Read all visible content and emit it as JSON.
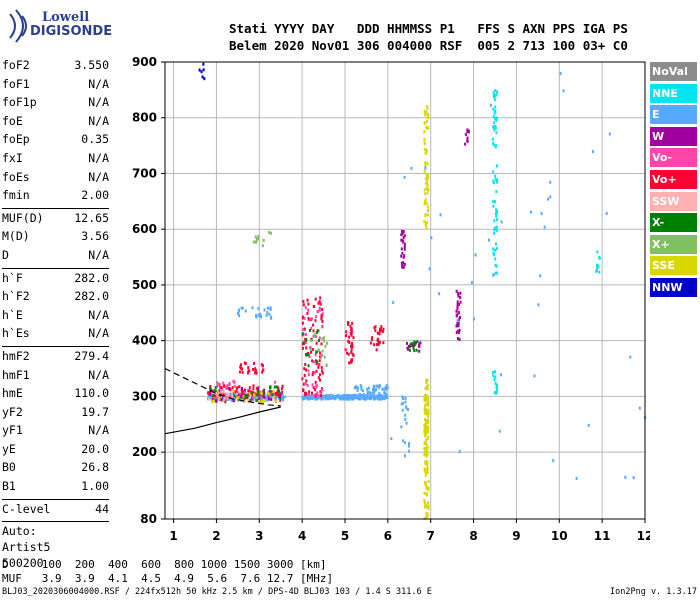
{
  "logo": {
    "line1": "Lowell",
    "line2": "DIGISONDE"
  },
  "header": {
    "line1": "Stati YYYY DAY   DDD HHMMSS P1   FFS S AXN PPS IGA PS",
    "line2": "Belem 2020 Nov01 306 004000 RSF  005 2 713 100 03+ C0"
  },
  "params_a": [
    {
      "label": "foF2",
      "value": "3.550"
    },
    {
      "label": "foF1",
      "value": "N/A"
    },
    {
      "label": "foF1p",
      "value": "N/A"
    },
    {
      "label": "foE",
      "value": "N/A"
    },
    {
      "label": "foEp",
      "value": "0.35"
    },
    {
      "label": "fxI",
      "value": "N/A"
    },
    {
      "label": "foEs",
      "value": "N/A"
    },
    {
      "label": "fmin",
      "value": "2.00"
    }
  ],
  "params_b": [
    {
      "label": "MUF(D)",
      "value": "12.65"
    },
    {
      "label": "M(D)",
      "value": "3.56"
    },
    {
      "label": "D",
      "value": "N/A"
    }
  ],
  "params_c": [
    {
      "label": "h`F",
      "value": "282.0"
    },
    {
      "label": "h`F2",
      "value": "282.0"
    },
    {
      "label": "h`E",
      "value": "N/A"
    },
    {
      "label": "h`Es",
      "value": "N/A"
    }
  ],
  "params_d": [
    {
      "label": "hmF2",
      "value": "279.4"
    },
    {
      "label": "hmF1",
      "value": "N/A"
    },
    {
      "label": "hmE",
      "value": "110.0"
    },
    {
      "label": "yF2",
      "value": "19.7"
    },
    {
      "label": "yF1",
      "value": "N/A"
    },
    {
      "label": "yE",
      "value": "20.0"
    },
    {
      "label": "B0",
      "value": "26.8"
    },
    {
      "label": "B1",
      "value": "1.00"
    }
  ],
  "params_e": [
    {
      "label": "C-level",
      "value": "44"
    }
  ],
  "auto": [
    "Auto:",
    "Artist5",
    "500200"
  ],
  "legend": [
    {
      "label": "NoVal",
      "color": "#8c8c8c"
    },
    {
      "label": "NNE",
      "color": "#00e5f0"
    },
    {
      "label": "E",
      "color": "#55aaff"
    },
    {
      "label": "W",
      "color": "#a000a0"
    },
    {
      "label": "Vo-",
      "color": "#ff44aa"
    },
    {
      "label": "Vo+",
      "color": "#ff0033"
    },
    {
      "label": "SSW",
      "color": "#ffb0b0"
    },
    {
      "label": "X-",
      "color": "#008000"
    },
    {
      "label": "X+",
      "color": "#80c060"
    },
    {
      "label": "SSE",
      "color": "#d8d800"
    },
    {
      "label": "NNW",
      "color": "#0000cc"
    }
  ],
  "dmuf": {
    "line1": "D     100  200  400  600  800 1000 1500 3000 [km]",
    "line2": "MUF   3.9  3.9  4.1  4.5  4.9  5.6  7.6 12.7 [MHz]"
  },
  "footer": {
    "left": "BLJ03_2020306004000.RSF / 224fx512h 50 kHz 2.5 km / DPS-4D BLJ03 103 / 1.4 S 311.6 E",
    "right": "Ion2Png v. 1.3.17"
  },
  "chart_data": {
    "type": "scatter",
    "xlim": [
      0.8,
      12.0
    ],
    "ylim": [
      80,
      900
    ],
    "xticks": [
      1,
      2,
      3,
      4,
      5,
      6,
      7,
      8,
      9,
      10,
      11,
      12
    ],
    "yticks": [
      80,
      200,
      300,
      400,
      500,
      600,
      700,
      800,
      900
    ],
    "grid": true,
    "legend_position": "right",
    "traces": [
      {
        "name": "solid",
        "x": [
          0.8,
          1.5,
          2.0,
          2.5,
          3.0,
          3.5
        ],
        "y": [
          233,
          243,
          253,
          262,
          272,
          281
        ]
      },
      {
        "name": "dashed",
        "x": [
          0.8,
          1.2,
          1.6,
          2.0,
          2.4,
          2.8,
          3.2,
          3.5
        ],
        "y": [
          350,
          335,
          320,
          305,
          295,
          290,
          285,
          283
        ]
      }
    ],
    "clusters": [
      {
        "color": "#55aaff",
        "x": [
          1.8,
          3.6
        ],
        "y": [
          293,
          305
        ],
        "n": 160
      },
      {
        "color": "#55aaff",
        "x": [
          4.0,
          6.0
        ],
        "y": [
          295,
          302
        ],
        "n": 260
      },
      {
        "color": "#55aaff",
        "x": [
          5.2,
          6.0
        ],
        "y": [
          300,
          320
        ],
        "n": 50
      },
      {
        "color": "#ff0033",
        "x": [
          1.8,
          3.6
        ],
        "y": [
          290,
          320
        ],
        "n": 90
      },
      {
        "color": "#ff0033",
        "x": [
          4.0,
          4.5
        ],
        "y": [
          300,
          480
        ],
        "n": 90
      },
      {
        "color": "#ff0033",
        "x": [
          2.5,
          3.1
        ],
        "y": [
          340,
          360
        ],
        "n": 25
      },
      {
        "color": "#ff0033",
        "x": [
          5.0,
          5.2
        ],
        "y": [
          360,
          440
        ],
        "n": 35
      },
      {
        "color": "#ff0033",
        "x": [
          5.6,
          5.9
        ],
        "y": [
          380,
          430
        ],
        "n": 25
      },
      {
        "color": "#ff44aa",
        "x": [
          1.8,
          3.4
        ],
        "y": [
          295,
          330
        ],
        "n": 40
      },
      {
        "color": "#ff44aa",
        "x": [
          4.0,
          4.5
        ],
        "y": [
          300,
          460
        ],
        "n": 40
      },
      {
        "color": "#a000a0",
        "x": [
          1.8,
          3.6
        ],
        "y": [
          292,
          315
        ],
        "n": 30
      },
      {
        "color": "#a000a0",
        "x": [
          6.3,
          6.4
        ],
        "y": [
          530,
          600
        ],
        "n": 25
      },
      {
        "color": "#a000a0",
        "x": [
          7.6,
          7.7
        ],
        "y": [
          400,
          490
        ],
        "n": 30
      },
      {
        "color": "#a000a0",
        "x": [
          7.8,
          7.9
        ],
        "y": [
          750,
          780
        ],
        "n": 10
      },
      {
        "color": "#a000a0",
        "x": [
          6.4,
          6.8
        ],
        "y": [
          380,
          400
        ],
        "n": 15
      },
      {
        "color": "#d8d800",
        "x": [
          6.85,
          6.95
        ],
        "y": [
          80,
          330
        ],
        "n": 140
      },
      {
        "color": "#d8d800",
        "x": [
          6.85,
          6.95
        ],
        "y": [
          600,
          820
        ],
        "n": 60
      },
      {
        "color": "#d8d800",
        "x": [
          1.8,
          3.4
        ],
        "y": [
          290,
          310
        ],
        "n": 30
      },
      {
        "color": "#00e5f0",
        "x": [
          8.45,
          8.55
        ],
        "y": [
          520,
          850
        ],
        "n": 70
      },
      {
        "color": "#00e5f0",
        "x": [
          8.45,
          8.55
        ],
        "y": [
          300,
          350
        ],
        "n": 15
      },
      {
        "color": "#00e5f0",
        "x": [
          10.85,
          10.95
        ],
        "y": [
          520,
          570
        ],
        "n": 10
      },
      {
        "color": "#008000",
        "x": [
          1.8,
          3.6
        ],
        "y": [
          290,
          320
        ],
        "n": 25
      },
      {
        "color": "#008000",
        "x": [
          4.0,
          4.4
        ],
        "y": [
          340,
          420
        ],
        "n": 15
      },
      {
        "color": "#008000",
        "x": [
          6.5,
          6.7
        ],
        "y": [
          380,
          400
        ],
        "n": 10
      },
      {
        "color": "#80c060",
        "x": [
          2.7,
          3.3
        ],
        "y": [
          570,
          595
        ],
        "n": 12
      },
      {
        "color": "#80c060",
        "x": [
          4.2,
          4.6
        ],
        "y": [
          350,
          420
        ],
        "n": 15
      },
      {
        "color": "#ffb0b0",
        "x": [
          1.8,
          3.0
        ],
        "y": [
          290,
          310
        ],
        "n": 15
      },
      {
        "color": "#55aaff",
        "x": [
          2.5,
          3.3
        ],
        "y": [
          440,
          460
        ],
        "n": 25
      },
      {
        "color": "#55aaff",
        "x": [
          6.3,
          6.5
        ],
        "y": [
          200,
          300
        ],
        "n": 20
      },
      {
        "color": "#55aaff",
        "x": [
          6.0,
          12.0
        ],
        "y": [
          150,
          900
        ],
        "n": 45
      },
      {
        "color": "#0000cc",
        "x": [
          1.6,
          1.8
        ],
        "y": [
          870,
          900
        ],
        "n": 6
      }
    ]
  }
}
